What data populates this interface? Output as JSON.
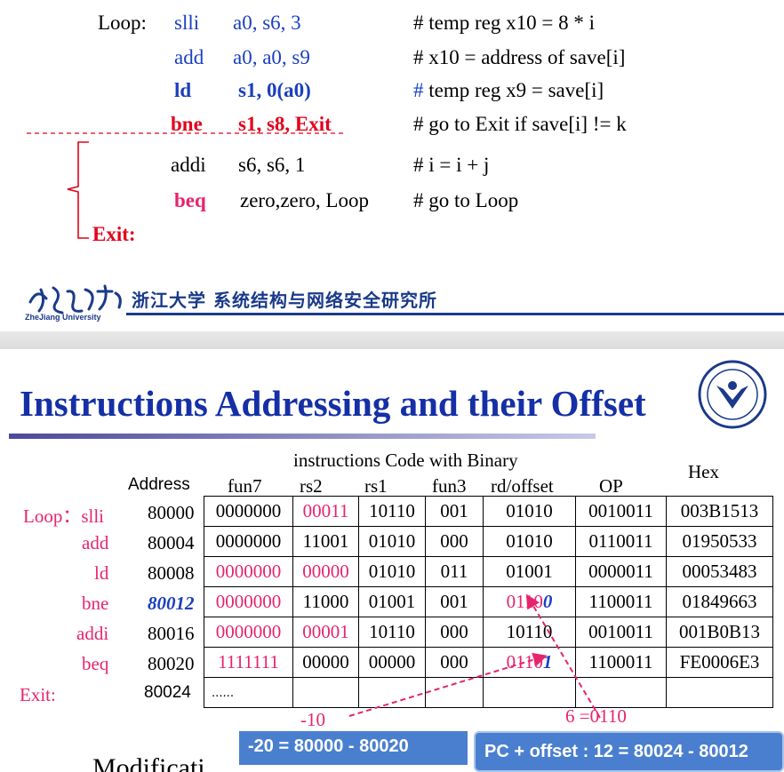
{
  "top_code": {
    "loop_label": "Loop:",
    "exit_label": "Exit:",
    "lines": [
      {
        "op": "slli",
        "args": "a0,  s6, 3",
        "comment": "# temp reg x10  =  8  *  i"
      },
      {
        "op": "add",
        "args": "a0, a0, s9",
        "comment": "# x10  =  address of save[i]"
      },
      {
        "op": "ld",
        "args": "s1, 0(a0)",
        "comment_hash": "#",
        "comment": " temp reg x9  =  save[i]"
      },
      {
        "op": "bne",
        "args": "s1, s8, Exit",
        "comment": "# go to Exit  if  save[i]  !=  k"
      },
      {
        "op": "addi",
        "args": "s6, s6, 1",
        "comment": "#  i  =  i  +  j"
      },
      {
        "op": "beq",
        "args": "zero,zero, Loop",
        "comment": "# go to Loop"
      }
    ]
  },
  "footer_logo": {
    "chinese": "浙江大学 系统结构与网络安全研究所",
    "english": "ZheJiang University"
  },
  "title": "Instructions Addressing and their Offset",
  "table": {
    "header_top": "instructions Code with Binary",
    "headers": [
      "Address",
      "fun7",
      "rs2",
      "rs1",
      "fun3",
      "rd/offset",
      "OP",
      "Hex"
    ],
    "rows": [
      {
        "label": "Loop：slli",
        "address": "80000",
        "fun7": "0000000",
        "rs2": "00011",
        "rs1": "10110",
        "fun3": "001",
        "rd": "01010",
        "op": "0010011",
        "hex": "003B1513"
      },
      {
        "label": "add",
        "address": "80004",
        "fun7": "0000000",
        "rs2": "11001",
        "rs1": "01010",
        "fun3": "000",
        "rd": "01010",
        "op": "0110011",
        "hex": "01950533"
      },
      {
        "label": "ld",
        "address": "80008",
        "fun7": "0000000",
        "rs2": "00000",
        "rs1": "01010",
        "fun3": "011",
        "rd": "01001",
        "op": "0000011",
        "hex": "00053483"
      },
      {
        "label": "bne",
        "address": "80012",
        "fun7": "0000000",
        "rs2": "11000",
        "rs1": "01001",
        "fun3": "001",
        "rd_a": "0110",
        "rd_b": "0",
        "op": "1100011",
        "hex": "01849663"
      },
      {
        "label": "addi",
        "address": "80016",
        "fun7": "0000000",
        "rs2": "00001",
        "rs1": "10110",
        "fun3": "000",
        "rd": "10110",
        "op": "0010011",
        "hex": "001B0B13"
      },
      {
        "label": "beq",
        "address": "80020",
        "fun7": "1111111",
        "rs2": "00000",
        "rs1": "00000",
        "fun3": "000",
        "rd_a": "0110",
        "rd_b": "1",
        "op": "1100011",
        "hex": "FE0006E3"
      },
      {
        "label": "Exit:",
        "address": "80024",
        "fun7": "......"
      }
    ]
  },
  "annotations": {
    "minus10": "-10",
    "six": "6  =0110",
    "box_left": "-20 = 80000 - 80020",
    "box_right": "PC + offset  :  12 = 80024 - 80012",
    "partial": "Modificati"
  },
  "colors": {
    "blue": "#1a3fbf",
    "red": "#e3001b",
    "pink": "#e6246e",
    "title": "#1530a6",
    "box": "#4a7fd0"
  }
}
